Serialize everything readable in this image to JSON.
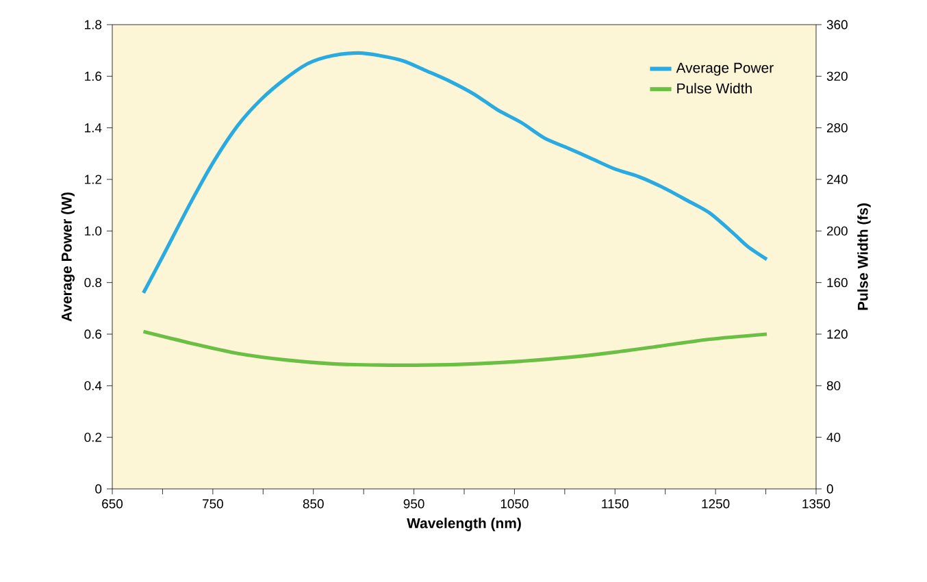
{
  "chart_data": {
    "type": "line",
    "xlabel": "Wavelength (nm)",
    "ylabel": "Average Power (W)",
    "y2label": "Pulse Width (fs)",
    "xlim": [
      650,
      1350
    ],
    "xticks": [
      650,
      {
        "value": 700,
        "label": null
      },
      750,
      {
        "value": 800,
        "label": null
      },
      850,
      {
        "value": 900,
        "label": null
      },
      950,
      {
        "value": 1000,
        "label": null
      },
      1050,
      {
        "value": 1100,
        "label": null
      },
      1150,
      {
        "value": 1200,
        "label": null
      },
      1250,
      {
        "value": 1300,
        "label": null
      },
      1350
    ],
    "ylim": [
      0,
      1.8
    ],
    "yticks": [
      0,
      0.2,
      0.4,
      0.6,
      0.8,
      {
        "value": 1,
        "label": "1.0"
      },
      1.2,
      1.4,
      1.6,
      1.8
    ],
    "y2lim": [
      0,
      360
    ],
    "y2ticks": [
      0,
      40,
      80,
      120,
      160,
      200,
      240,
      280,
      320,
      360
    ],
    "legend": "top right",
    "grid": false,
    "line_style": "solid",
    "marker": "none",
    "series": [
      {
        "name": "Average Power",
        "color": "#29abe2",
        "axis": "y",
        "x": [
          681,
          700,
          728,
          751,
          775,
          798,
          822,
          845,
          869,
          895,
          916,
          939,
          963,
          986,
          1010,
          1033,
          1057,
          1080,
          1104,
          1127,
          1150,
          1174,
          1197,
          1221,
          1244,
          1268,
          1282,
          1301
        ],
        "values": [
          0.76,
          0.9,
          1.11,
          1.27,
          1.41,
          1.51,
          1.59,
          1.65,
          1.68,
          1.69,
          1.68,
          1.66,
          1.62,
          1.58,
          1.53,
          1.47,
          1.42,
          1.36,
          1.32,
          1.28,
          1.24,
          1.21,
          1.17,
          1.12,
          1.07,
          0.99,
          0.94,
          0.89
        ]
      },
      {
        "name": "Pulse Width",
        "color": "#6cbf45",
        "axis": "y2",
        "x": [
          681,
          728,
          775,
          822,
          869,
          916,
          963,
          1010,
          1057,
          1104,
          1150,
          1197,
          1244,
          1301
        ],
        "values": [
          122,
          113,
          105,
          100,
          97,
          96,
          96,
          97,
          99,
          102,
          106,
          111,
          116,
          120
        ]
      }
    ]
  }
}
